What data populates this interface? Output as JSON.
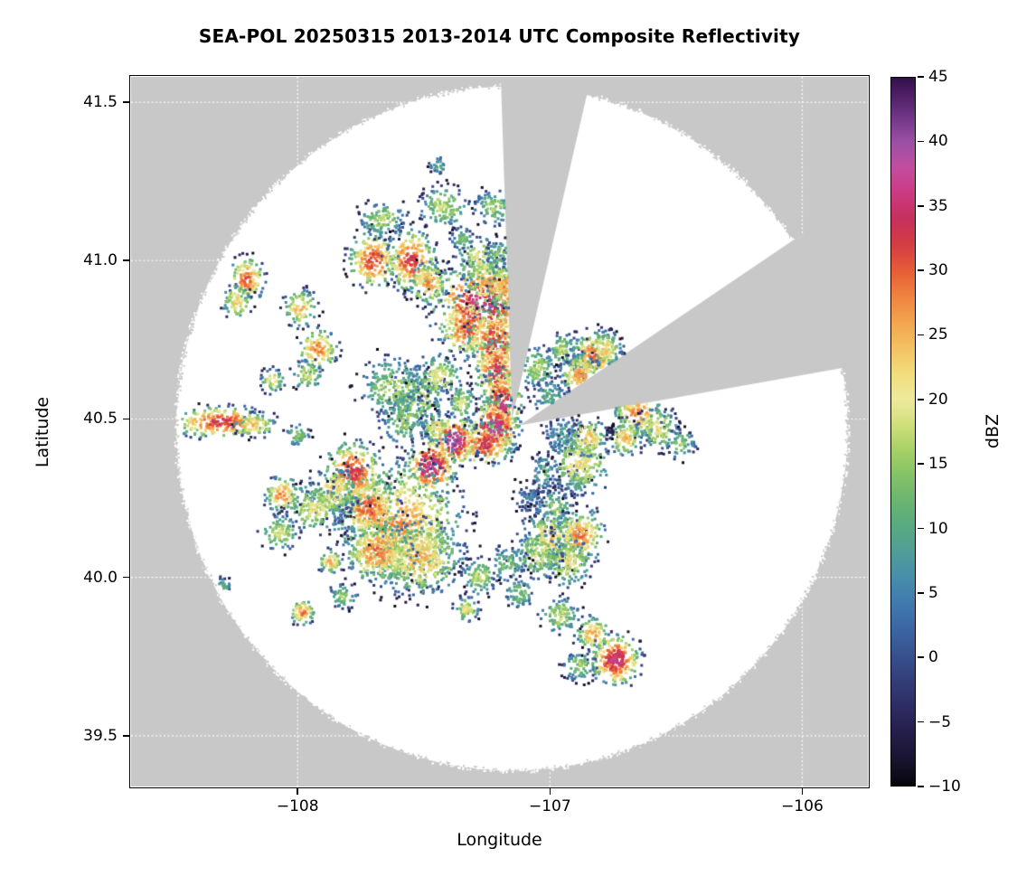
{
  "chart_data": {
    "type": "heatmap",
    "subtype": "radar_ppi_composite_reflectivity",
    "title": "SEA-POL 20250315 2013-2014 UTC Composite Reflectivity",
    "xlabel": "Longitude",
    "ylabel": "Latitude",
    "xlim": [
      -108.66,
      -105.74
    ],
    "ylim": [
      39.34,
      41.58
    ],
    "x_ticks": [
      -108,
      -107,
      -106
    ],
    "x_tick_labels": [
      "−108",
      "−107",
      "−106"
    ],
    "y_ticks": [
      39.5,
      40.0,
      40.5,
      41.0,
      41.5
    ],
    "y_tick_labels": [
      "39.5",
      "40.0",
      "40.5",
      "41.0",
      "41.5"
    ],
    "grid": true,
    "background_outside_scan_color": "#c8c8c8",
    "scan_area_color": "#ffffff",
    "colorbar": {
      "label": "dBZ",
      "min": -10,
      "max": 45,
      "ticks": [
        -10,
        -5,
        0,
        5,
        10,
        15,
        20,
        25,
        30,
        35,
        40,
        45
      ],
      "tick_labels": [
        "−10",
        "−5",
        "0",
        "5",
        "10",
        "15",
        "20",
        "25",
        "30",
        "35",
        "40",
        "45"
      ],
      "stops": [
        [
          -10,
          "#08040c"
        ],
        [
          -8,
          "#18142e"
        ],
        [
          -6,
          "#241e49"
        ],
        [
          -4,
          "#2d2b62"
        ],
        [
          -2,
          "#333c77"
        ],
        [
          0,
          "#37508c"
        ],
        [
          2,
          "#3b64a2"
        ],
        [
          4,
          "#4078ae"
        ],
        [
          6,
          "#478cab"
        ],
        [
          8,
          "#4e9d99"
        ],
        [
          10,
          "#57a983"
        ],
        [
          12,
          "#68b471"
        ],
        [
          14,
          "#83c167"
        ],
        [
          16,
          "#a5d066"
        ],
        [
          18,
          "#cfdf78"
        ],
        [
          20,
          "#eee99d"
        ],
        [
          22,
          "#f2dd7b"
        ],
        [
          24,
          "#f3c261"
        ],
        [
          26,
          "#f2a44e"
        ],
        [
          28,
          "#ef8340"
        ],
        [
          30,
          "#e75d37"
        ],
        [
          32,
          "#d43d42"
        ],
        [
          34,
          "#c5305c"
        ],
        [
          36,
          "#cb3a80"
        ],
        [
          38,
          "#c24d9f"
        ],
        [
          40,
          "#9c50a5"
        ],
        [
          42,
          "#6f3585"
        ],
        [
          44,
          "#471b5e"
        ],
        [
          45,
          "#32104a"
        ]
      ]
    },
    "radar": {
      "center": {
        "lon": -107.15,
        "lat": 40.47
      },
      "scan_radius_lon_deg": 1.33,
      "scan_radius_lat_deg": 1.08,
      "blocked_sectors": [
        {
          "name": "north-notch",
          "polygon": [
            [
              -107.15,
              40.5
            ],
            [
              -107.21,
              41.95
            ],
            [
              -106.73,
              41.95
            ]
          ]
        },
        {
          "name": "east-wedge",
          "polygon": [
            [
              -107.12,
              40.48
            ],
            [
              -105.34,
              41.44
            ],
            [
              -105.13,
              41.12
            ],
            [
              -105.0,
              40.78
            ]
          ]
        }
      ]
    },
    "echo_cells_format": [
      "lon",
      "lat",
      "rx_deg",
      "ry_deg",
      "peak_dbz",
      "n_speckles"
    ],
    "echo_cells": [
      [
        -107.27,
        40.86,
        0.1,
        0.07,
        36,
        550
      ],
      [
        -107.33,
        40.79,
        0.06,
        0.05,
        30,
        200
      ],
      [
        -107.22,
        40.74,
        0.055,
        0.055,
        34,
        240
      ],
      [
        -107.21,
        40.65,
        0.045,
        0.055,
        33,
        220
      ],
      [
        -107.19,
        40.55,
        0.04,
        0.055,
        35,
        220
      ],
      [
        -107.22,
        40.47,
        0.05,
        0.045,
        38,
        260
      ],
      [
        -107.26,
        40.42,
        0.06,
        0.035,
        33,
        180
      ],
      [
        -107.24,
        40.93,
        0.05,
        0.04,
        26,
        160
      ],
      [
        -107.17,
        40.92,
        0.04,
        0.035,
        27,
        130
      ],
      [
        -107.28,
        41.0,
        0.05,
        0.04,
        20,
        130
      ],
      [
        -107.38,
        40.43,
        0.045,
        0.04,
        39,
        210
      ],
      [
        -107.47,
        40.35,
        0.05,
        0.045,
        37,
        230
      ],
      [
        -107.52,
        40.57,
        0.06,
        0.05,
        17,
        190
      ],
      [
        -107.44,
        40.63,
        0.05,
        0.04,
        19,
        150
      ],
      [
        -107.62,
        40.6,
        0.07,
        0.05,
        16,
        210
      ],
      [
        -107.58,
        40.5,
        0.05,
        0.045,
        15,
        140
      ],
      [
        -107.45,
        40.47,
        0.03,
        0.025,
        22,
        80
      ],
      [
        -107.35,
        40.55,
        0.03,
        0.03,
        18,
        80
      ],
      [
        -107.6,
        40.17,
        0.13,
        0.1,
        26,
        950
      ],
      [
        -107.52,
        40.06,
        0.09,
        0.06,
        24,
        420
      ],
      [
        -107.68,
        40.08,
        0.07,
        0.05,
        28,
        320
      ],
      [
        -107.72,
        40.22,
        0.06,
        0.05,
        30,
        270
      ],
      [
        -107.78,
        40.33,
        0.06,
        0.05,
        32,
        290
      ],
      [
        -107.86,
        40.27,
        0.05,
        0.04,
        22,
        180
      ],
      [
        -107.93,
        40.22,
        0.06,
        0.04,
        20,
        180
      ],
      [
        -108.06,
        40.26,
        0.035,
        0.03,
        27,
        110
      ],
      [
        -108.07,
        40.14,
        0.04,
        0.03,
        18,
        100
      ],
      [
        -107.87,
        40.05,
        0.025,
        0.02,
        24,
        60
      ],
      [
        -108.3,
        40.49,
        0.1,
        0.025,
        32,
        270
      ],
      [
        -108.17,
        40.48,
        0.04,
        0.02,
        25,
        80
      ],
      [
        -108.0,
        40.45,
        0.025,
        0.02,
        14,
        50
      ],
      [
        -108.2,
        40.94,
        0.035,
        0.035,
        30,
        130
      ],
      [
        -108.24,
        40.87,
        0.03,
        0.03,
        22,
        80
      ],
      [
        -107.99,
        40.85,
        0.035,
        0.03,
        24,
        100
      ],
      [
        -107.92,
        40.72,
        0.04,
        0.035,
        27,
        130
      ],
      [
        -107.96,
        40.64,
        0.03,
        0.025,
        18,
        70
      ],
      [
        -108.1,
        40.62,
        0.025,
        0.02,
        20,
        50
      ],
      [
        -107.7,
        41.0,
        0.05,
        0.045,
        31,
        230
      ],
      [
        -107.55,
        41.0,
        0.05,
        0.05,
        32,
        270
      ],
      [
        -107.48,
        40.93,
        0.04,
        0.035,
        26,
        140
      ],
      [
        -107.66,
        41.13,
        0.05,
        0.03,
        16,
        120
      ],
      [
        -107.42,
        41.17,
        0.05,
        0.035,
        17,
        140
      ],
      [
        -107.22,
        41.17,
        0.04,
        0.03,
        15,
        100
      ],
      [
        -107.35,
        41.07,
        0.025,
        0.02,
        12,
        50
      ],
      [
        -107.2,
        41.02,
        0.03,
        0.025,
        14,
        60
      ],
      [
        -107.44,
        41.3,
        0.02,
        0.015,
        10,
        30
      ],
      [
        -107.05,
        40.66,
        0.04,
        0.035,
        16,
        120
      ],
      [
        -107.0,
        40.57,
        0.04,
        0.03,
        10,
        100
      ],
      [
        -106.95,
        40.45,
        0.04,
        0.035,
        8,
        110
      ],
      [
        -107.02,
        40.33,
        0.03,
        0.03,
        11,
        80
      ],
      [
        -107.08,
        40.25,
        0.035,
        0.03,
        4,
        80
      ],
      [
        -106.98,
        40.22,
        0.04,
        0.03,
        14,
        100
      ],
      [
        -106.9,
        40.3,
        0.03,
        0.025,
        9,
        60
      ],
      [
        -106.95,
        40.72,
        0.03,
        0.025,
        16,
        80
      ],
      [
        -106.88,
        40.68,
        0.025,
        0.02,
        12,
        50
      ],
      [
        -106.82,
        40.7,
        0.05,
        0.04,
        29,
        230
      ],
      [
        -106.88,
        40.64,
        0.04,
        0.035,
        26,
        150
      ],
      [
        -106.78,
        40.72,
        0.035,
        0.03,
        22,
        100
      ],
      [
        -106.65,
        40.52,
        0.05,
        0.04,
        27,
        210
      ],
      [
        -106.57,
        40.47,
        0.04,
        0.035,
        20,
        120
      ],
      [
        -106.7,
        40.44,
        0.035,
        0.03,
        23,
        100
      ],
      [
        -106.48,
        40.42,
        0.03,
        0.025,
        14,
        60
      ],
      [
        -106.76,
        40.46,
        0.013,
        0.013,
        -8,
        30
      ],
      [
        -106.88,
        40.36,
        0.06,
        0.05,
        21,
        230
      ],
      [
        -106.85,
        40.44,
        0.04,
        0.03,
        24,
        120
      ],
      [
        -107.0,
        40.12,
        0.06,
        0.05,
        22,
        250
      ],
      [
        -106.88,
        40.13,
        0.05,
        0.045,
        27,
        230
      ],
      [
        -106.93,
        40.05,
        0.05,
        0.04,
        20,
        160
      ],
      [
        -107.05,
        40.07,
        0.05,
        0.04,
        18,
        160
      ],
      [
        -107.17,
        40.04,
        0.04,
        0.03,
        13,
        90
      ],
      [
        -107.28,
        40.0,
        0.035,
        0.03,
        17,
        90
      ],
      [
        -107.12,
        39.95,
        0.03,
        0.025,
        14,
        70
      ],
      [
        -106.96,
        39.88,
        0.04,
        0.03,
        17,
        110
      ],
      [
        -106.83,
        39.82,
        0.035,
        0.03,
        25,
        110
      ],
      [
        -106.74,
        39.74,
        0.05,
        0.04,
        35,
        270
      ],
      [
        -106.88,
        39.72,
        0.035,
        0.025,
        15,
        80
      ],
      [
        -107.33,
        39.9,
        0.025,
        0.02,
        20,
        60
      ],
      [
        -107.98,
        39.89,
        0.025,
        0.02,
        27,
        70
      ],
      [
        -107.82,
        39.94,
        0.03,
        0.02,
        15,
        60
      ],
      [
        -108.3,
        39.97,
        0.02,
        0.015,
        12,
        35
      ]
    ]
  }
}
